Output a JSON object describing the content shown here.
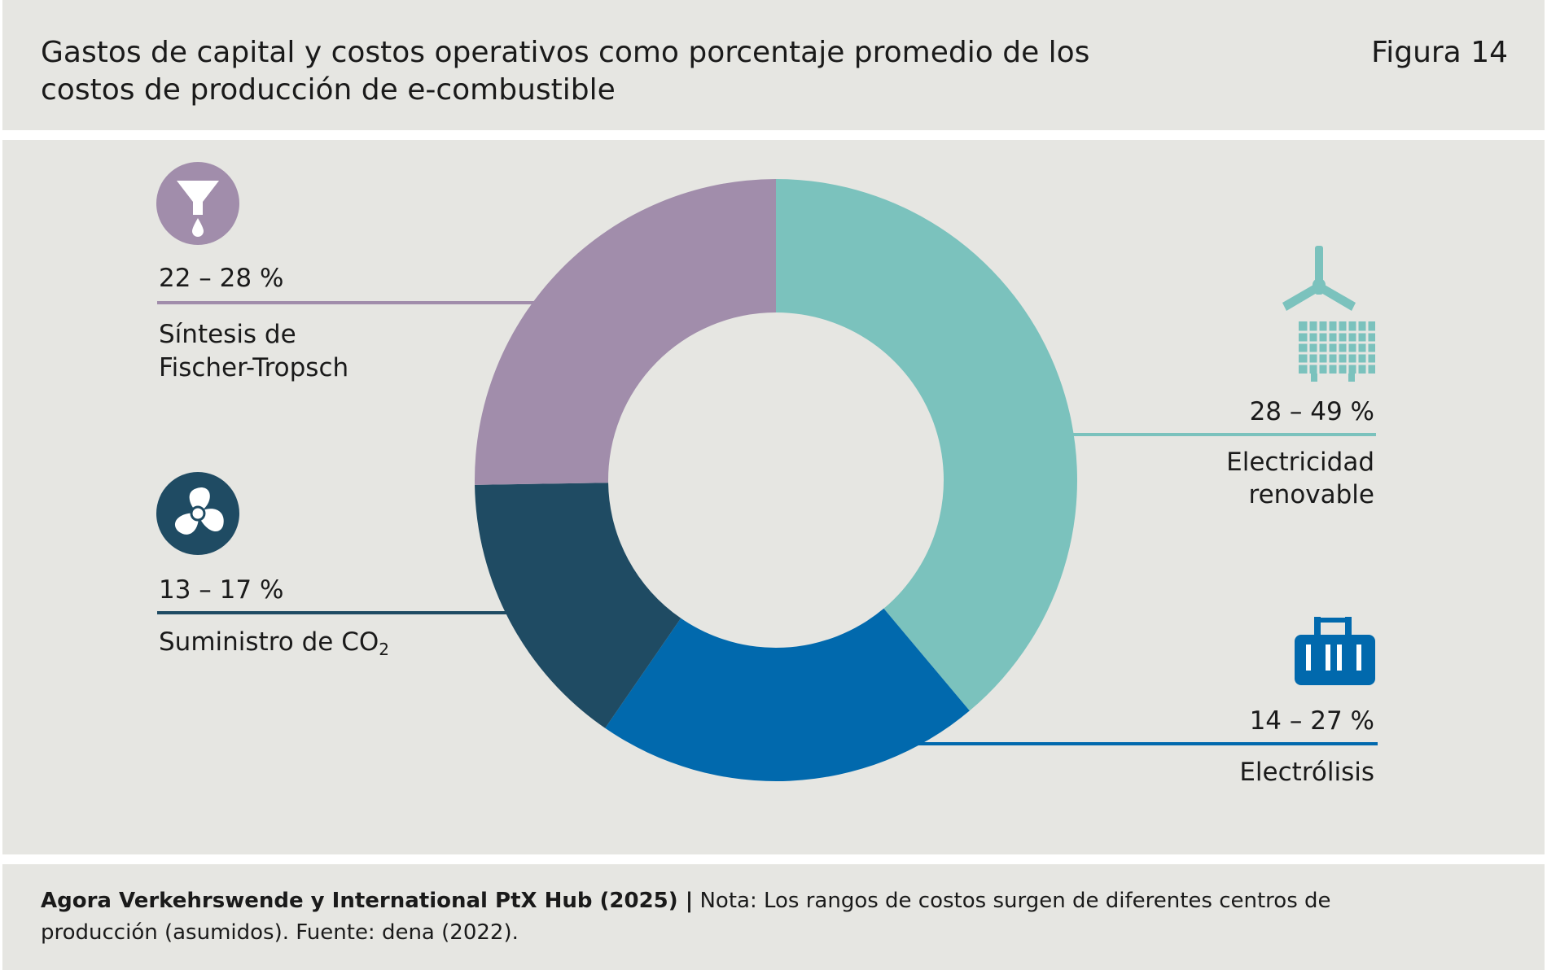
{
  "header": {
    "title": "Gastos de capital y costos operativos como porcentaje promedio de los costos de producción de e-combustible",
    "figure_label": "Figura 14"
  },
  "chart_data": {
    "type": "pie",
    "variant": "donut",
    "title": "Gastos de capital y costos operativos como porcentaje promedio de los costos de producción de e-combustible",
    "slices": [
      {
        "label": "Electricidad renovable",
        "range": "28 – 49 %",
        "value": 38.5,
        "color": "#7bc2bd",
        "icon": "wind-turbine-solar-icon"
      },
      {
        "label": "Electrólisis",
        "range": "14 – 27 %",
        "value": 20.5,
        "color": "#0169ad",
        "icon": "electrolysis-icon"
      },
      {
        "label": "Suministro de CO₂",
        "range": "13 – 17 %",
        "value": 15,
        "color": "#1f4b63",
        "icon": "fan-icon"
      },
      {
        "label": "Síntesis de Fischer-Tropsch",
        "range": "22 – 28 %",
        "value": 25,
        "color": "#a18dab",
        "icon": "funnel-drop-icon"
      }
    ]
  },
  "labels": {
    "renewable_range": "28 – 49 %",
    "renewable_line1": "Electricidad",
    "renewable_line2": "renovable",
    "electrolysis_range": "14 – 27 %",
    "electrolysis_label": "Electrólisis",
    "co2_range": "13 – 17 %",
    "co2_label_prefix": "Suministro de CO",
    "co2_label_sub": "2",
    "ft_range": "22 – 28 %",
    "ft_line1": "Síntesis de",
    "ft_line2": "Fischer-Tropsch"
  },
  "footer": {
    "source_bold": "Agora Verkehrswende y International PtX Hub (2025) |",
    "note": " Nota: Los rangos de costos surgen de diferentes centros de producción (asumidos). Fuente: dena (2022)."
  }
}
